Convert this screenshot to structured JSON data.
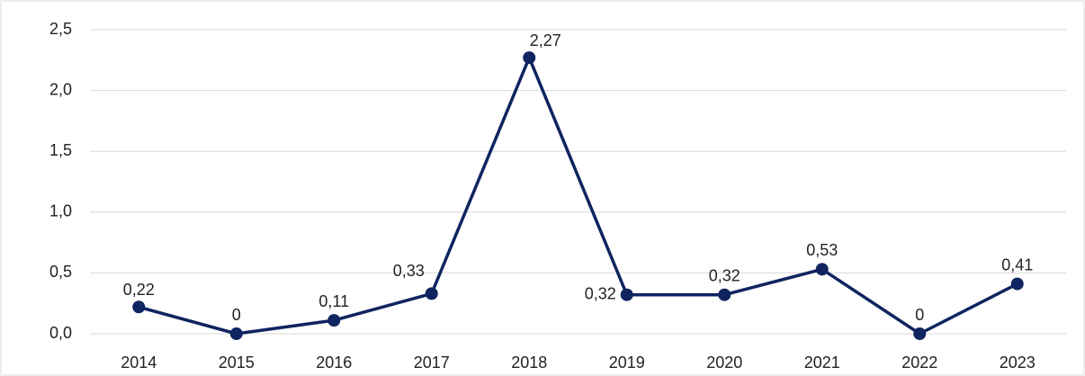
{
  "chart_data": {
    "type": "line",
    "categories": [
      "2014",
      "2015",
      "2016",
      "2017",
      "2018",
      "2019",
      "2020",
      "2021",
      "2022",
      "2023"
    ],
    "series": [
      {
        "color": "#0f2460",
        "values": [
          0.22,
          0,
          0.11,
          0.33,
          2.27,
          0.32,
          0.32,
          0.53,
          0,
          0.41
        ],
        "value_labels": [
          "0,22",
          "0",
          "0,11",
          "0,33",
          "2,27",
          "0,32",
          "0,32",
          "0,53",
          "0",
          "0,41"
        ]
      }
    ],
    "ylim": [
      0,
      2.5
    ],
    "yticks": [
      {
        "value": 0,
        "label": "0,0"
      },
      {
        "value": 0.5,
        "label": "0,5"
      },
      {
        "value": 1,
        "label": "1,0"
      },
      {
        "value": 1.5,
        "label": "1,5"
      },
      {
        "value": 2,
        "label": "2,0"
      },
      {
        "value": 2.5,
        "label": "2,5"
      }
    ],
    "grid": true
  }
}
